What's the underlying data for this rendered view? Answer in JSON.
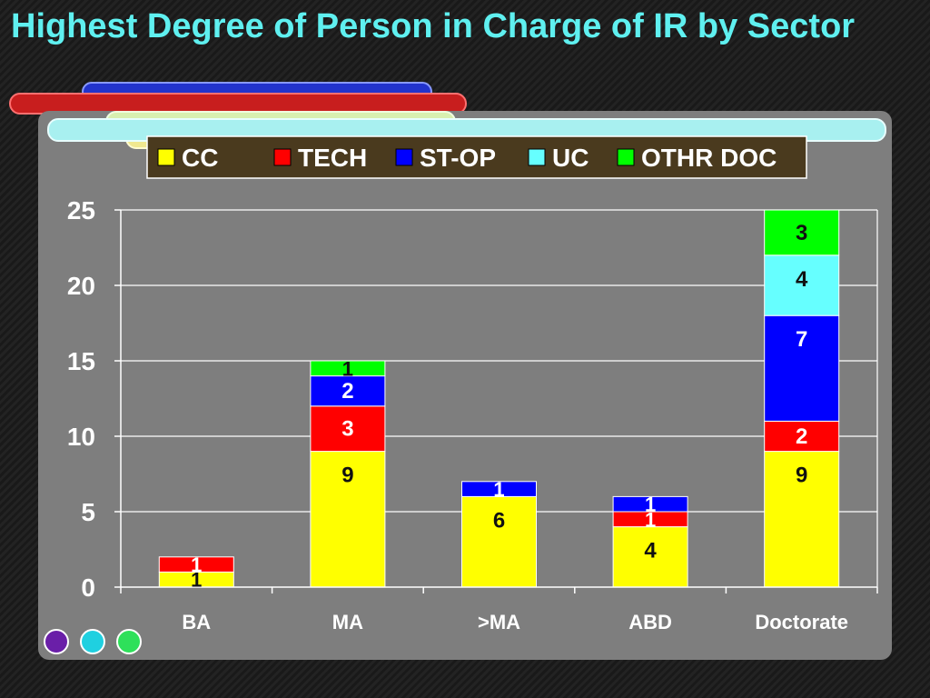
{
  "slide": {
    "title": "Highest Degree of Person in Charge of IR by Sector"
  },
  "chart_data": {
    "type": "bar",
    "stacked": true,
    "categories": [
      "BA",
      "MA",
      ">MA",
      "ABD",
      "Doctorate"
    ],
    "series": [
      {
        "name": "CC",
        "color": "#ffff00",
        "values": [
          1,
          9,
          6,
          4,
          9
        ]
      },
      {
        "name": "TECH",
        "color": "#ff0000",
        "values": [
          1,
          3,
          0,
          1,
          2
        ]
      },
      {
        "name": "ST-OP",
        "color": "#0000ff",
        "values": [
          0,
          2,
          1,
          1,
          7
        ]
      },
      {
        "name": "UC",
        "color": "#66ffff",
        "values": [
          0,
          0,
          0,
          0,
          4
        ]
      },
      {
        "name": "OTHR DOC",
        "color": "#00ff00",
        "values": [
          0,
          1,
          0,
          0,
          3
        ]
      }
    ],
    "ylim": [
      0,
      25
    ],
    "yticks": [
      "0",
      "5",
      "10",
      "15",
      "20",
      "25"
    ],
    "grid": true,
    "legend_position": "top-center"
  }
}
